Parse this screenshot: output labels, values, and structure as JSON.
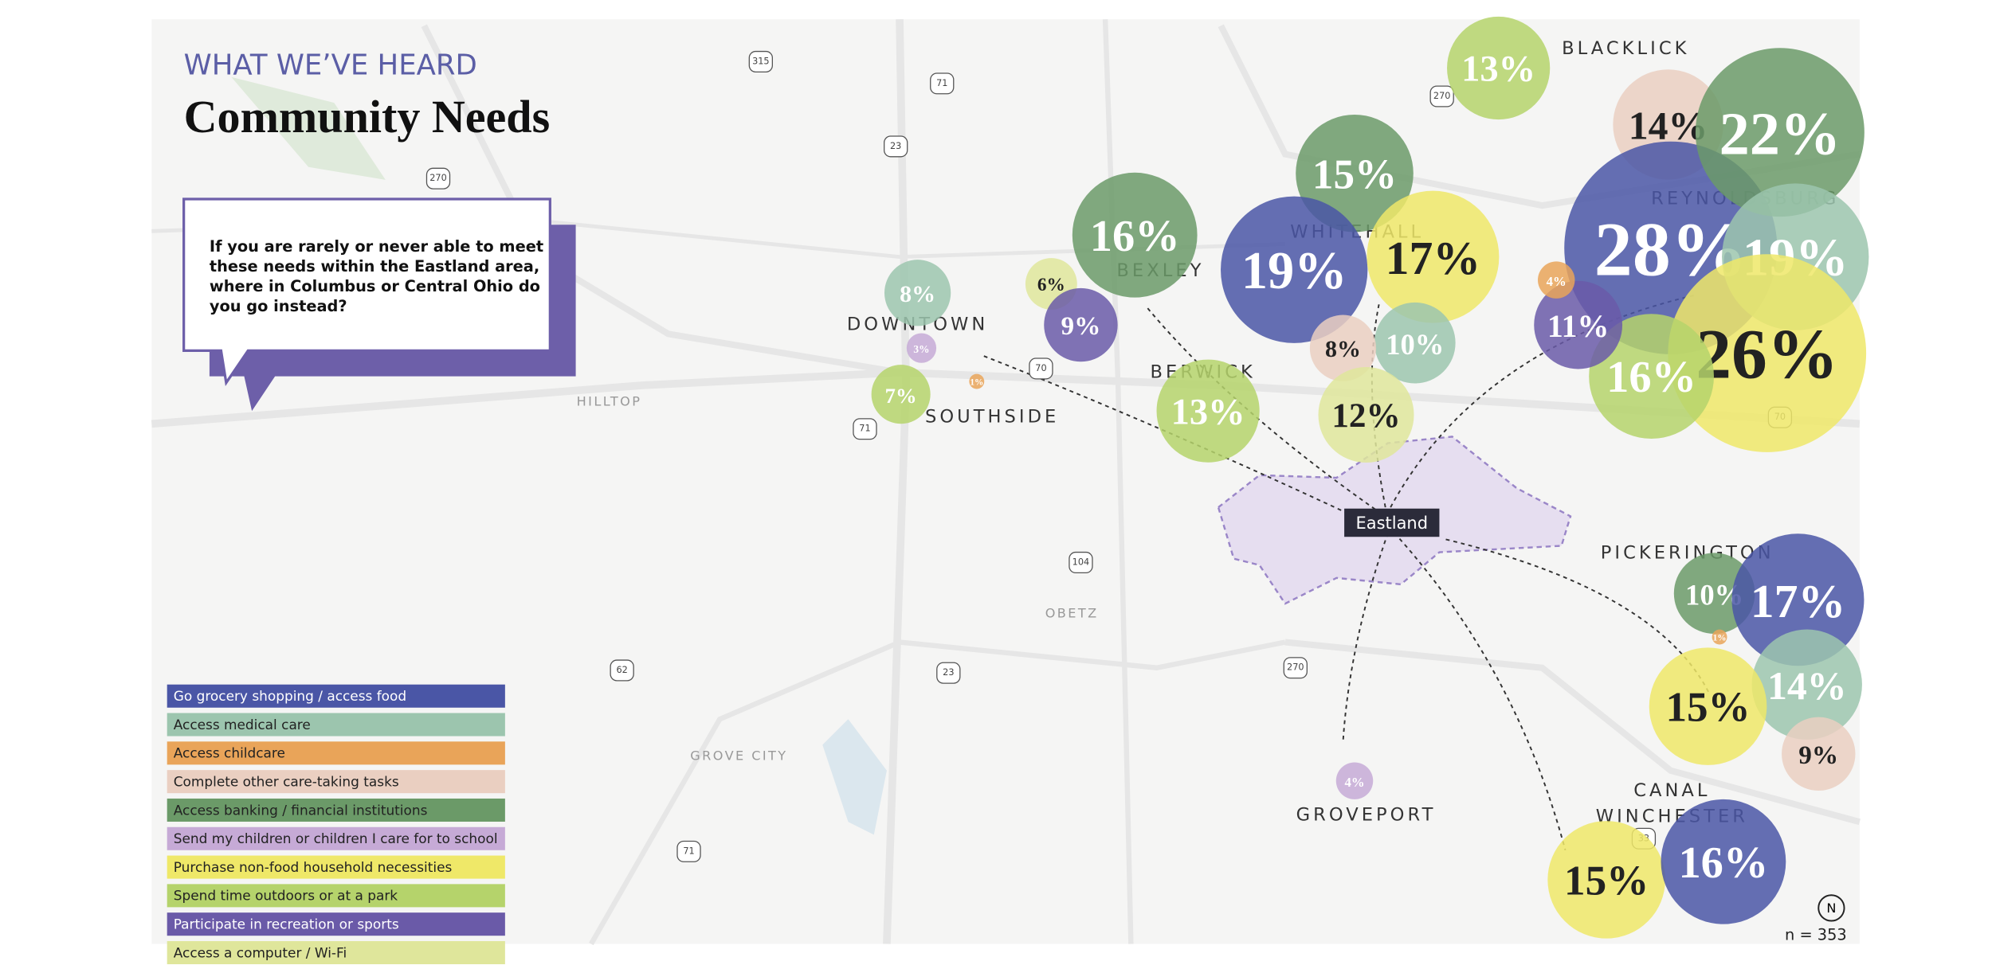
{
  "header": {
    "kicker": "WHAT WE’VE HEARD",
    "title": "Community Needs"
  },
  "question": [
    "If you are rarely or never able to meet",
    "these needs within the Eastland area,",
    "where in Columbus or Central Ohio do",
    "you go instead?"
  ],
  "legend": [
    {
      "name": "Go grocery shopping / access food",
      "color": "#4a56a6"
    },
    {
      "name": "Access medical care",
      "color": "#9cc5ae"
    },
    {
      "name": "Access childcare",
      "color": "#e9a459"
    },
    {
      "name": "Complete other care-taking tasks",
      "color": "#eacfc1"
    },
    {
      "name": "Access banking / financial institutions",
      "color": "#6b9a68"
    },
    {
      "name": "Send my children or children I care for to school",
      "color": "#c6aad6"
    },
    {
      "name": "Purchase non-food household necessities",
      "color": "#efe868"
    },
    {
      "name": "Spend time outdoors or at a park",
      "color": "#b5d36b"
    },
    {
      "name": "Participate in recreation or sports",
      "color": "#6a5aa8"
    },
    {
      "name": "Access a computer / Wi-Fi",
      "color": "#dfe69b"
    }
  ],
  "places": [
    "BLACKLICK",
    "REYNOLDSBURG",
    "WHITEHALL",
    "BEXLEY",
    "DOWNTOWN",
    "BERWICK",
    "SOUTHSIDE",
    "PICKERINGTON",
    "GROVEPORT",
    "CANAL",
    "WINCHESTER"
  ],
  "minor_places": [
    "HILLTOP",
    "OBETZ",
    "GROVE CITY"
  ],
  "routes": [
    "315",
    "71",
    "270",
    "23",
    "70",
    "71",
    "104",
    "23",
    "62",
    "270",
    "71",
    "270",
    "70",
    "33"
  ],
  "center": "Eastland",
  "north": "N",
  "sample": "n = 353",
  "bubbles": [
    {
      "category": "Spend time outdoors or at a park",
      "value": 13,
      "label": "13%"
    },
    {
      "category": "Complete other care-taking tasks",
      "value": 14,
      "label": "14%"
    },
    {
      "category": "Go grocery shopping / access food",
      "value": 28,
      "label": "28%"
    },
    {
      "category": "Access banking / financial institutions",
      "value": 22,
      "label": "22%"
    },
    {
      "category": "Access medical care",
      "value": 19,
      "label": "19%"
    },
    {
      "category": "Purchase non-food household necessities",
      "value": 26,
      "label": "26%"
    },
    {
      "category": "Spend time outdoors or at a park",
      "value": 16,
      "label": "16%"
    },
    {
      "category": "Participate in recreation or sports",
      "value": 11,
      "label": "11%"
    },
    {
      "category": "Access childcare",
      "value": 4,
      "label": "4%"
    },
    {
      "category": "Access banking / financial institutions",
      "value": 15,
      "label": "15%"
    },
    {
      "category": "Go grocery shopping / access food",
      "value": 19,
      "label": "19%"
    },
    {
      "category": "Purchase non-food household necessities",
      "value": 17,
      "label": "17%"
    },
    {
      "category": "Access medical care",
      "value": 10,
      "label": "10%"
    },
    {
      "category": "Complete other care-taking tasks",
      "value": 8,
      "label": "8%"
    },
    {
      "category": "Access a computer / Wi-Fi",
      "value": 12,
      "label": "12%"
    },
    {
      "category": "Access banking / financial institutions",
      "value": 16,
      "label": "16%"
    },
    {
      "category": "Access a computer / Wi-Fi",
      "value": 6,
      "label": "6%"
    },
    {
      "category": "Participate in recreation or sports",
      "value": 9,
      "label": "9%"
    },
    {
      "category": "Spend time outdoors or at a park",
      "value": 13,
      "label": "13%"
    },
    {
      "category": "Access medical care",
      "value": 8,
      "label": "8%"
    },
    {
      "category": "Send my children or children I care for to school",
      "value": 3,
      "label": "3%"
    },
    {
      "category": "Spend time outdoors or at a park",
      "value": 7,
      "label": "7%"
    },
    {
      "category": "Access childcare",
      "value": 1,
      "label": "1%"
    },
    {
      "category": "Access banking / financial institutions",
      "value": 10,
      "label": "10%"
    },
    {
      "category": "Go grocery shopping / access food",
      "value": 17,
      "label": "17%"
    },
    {
      "category": "Access childcare",
      "value": 1,
      "label": "1%"
    },
    {
      "category": "Access medical care",
      "value": 14,
      "label": "14%"
    },
    {
      "category": "Purchase non-food household necessities",
      "value": 15,
      "label": "15%"
    },
    {
      "category": "Complete other care-taking tasks",
      "value": 9,
      "label": "9%"
    },
    {
      "category": "Send my children or children I care for to school",
      "value": 4,
      "label": "4%"
    },
    {
      "category": "Purchase non-food household necessities",
      "value": 15,
      "label": "15%"
    },
    {
      "category": "Go grocery shopping / access food",
      "value": 16,
      "label": "16%"
    }
  ]
}
